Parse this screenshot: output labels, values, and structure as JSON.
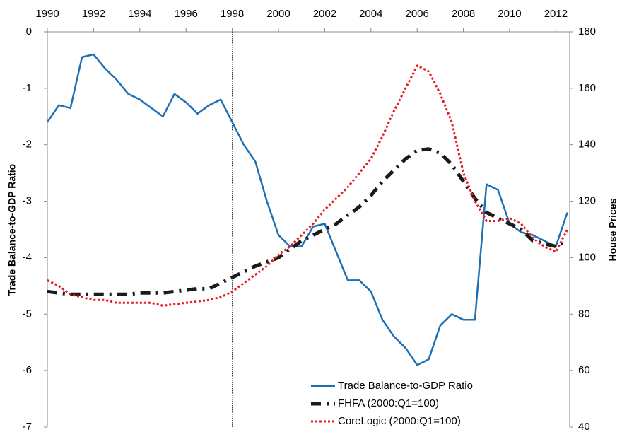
{
  "chart_data": {
    "type": "line",
    "y_label": "Trade Balance-to-GDP Ratio",
    "y2_label": "House Prices",
    "x": [
      1990,
      1990.5,
      1991,
      1991.5,
      1992,
      1992.5,
      1993,
      1993.5,
      1994,
      1994.5,
      1995,
      1995.5,
      1996,
      1996.5,
      1997,
      1997.5,
      1998,
      1998.5,
      1999,
      1999.5,
      2000,
      2000.5,
      2001,
      2001.5,
      2002,
      2002.5,
      2003,
      2003.5,
      2004,
      2004.5,
      2005,
      2005.5,
      2006,
      2006.5,
      2007,
      2007.5,
      2008,
      2008.5,
      2009,
      2009.5,
      2010,
      2010.5,
      2011,
      2011.5,
      2012,
      2012.5
    ],
    "series": [
      {
        "name": "Trade Balance-to-GDP Ratio",
        "color": "#1f6fb5",
        "style": "solid",
        "axis": "y",
        "values": [
          -1.6,
          -1.3,
          -1.35,
          -0.45,
          -0.4,
          -0.65,
          -0.85,
          -1.1,
          -1.2,
          -1.35,
          -1.5,
          -1.1,
          -1.25,
          -1.45,
          -1.3,
          -1.2,
          -1.6,
          -2.0,
          -2.3,
          -3.0,
          -3.6,
          -3.8,
          -3.8,
          -3.45,
          -3.4,
          -3.9,
          -4.4,
          -4.4,
          -4.6,
          -5.1,
          -5.4,
          -5.6,
          -5.9,
          -5.8,
          -5.2,
          -5.0,
          -5.1,
          -5.1,
          -2.7,
          -2.8,
          -3.4,
          -3.55,
          -3.6,
          -3.7,
          -3.8,
          -3.2
        ]
      },
      {
        "name": "FHFA (2000:Q1=100)",
        "color": "#1a1a1a",
        "style": "dashdot",
        "axis": "y2",
        "values": [
          88,
          87.5,
          87,
          87,
          87,
          87,
          87,
          87,
          87.5,
          87.5,
          87.5,
          88,
          88.5,
          89,
          89,
          91,
          93,
          95,
          97,
          98.5,
          100,
          103,
          106,
          108,
          110,
          112,
          115,
          118,
          122,
          127,
          131,
          135,
          138,
          138.5,
          137,
          133,
          127,
          121,
          116,
          114,
          112,
          110,
          106,
          105,
          104,
          106
        ]
      },
      {
        "name": "CoreLogic  (2000:Q1=100)",
        "color": "#e8191c",
        "style": "dotted",
        "axis": "y2",
        "values": [
          92,
          90,
          87,
          86,
          85,
          85,
          84,
          84,
          84,
          84,
          83,
          83.5,
          84,
          84.5,
          85,
          86,
          88,
          91,
          94,
          97,
          101,
          104,
          108,
          112,
          117,
          121,
          125,
          130,
          135,
          143,
          152,
          160,
          168,
          166,
          158,
          148,
          130,
          120,
          113,
          113,
          114,
          112,
          107,
          104,
          102,
          110
        ]
      }
    ],
    "xlim": [
      1990,
      2012.6
    ],
    "xticks": [
      1990,
      1992,
      1994,
      1996,
      1998,
      2000,
      2002,
      2004,
      2006,
      2008,
      2010,
      2012
    ],
    "ylim": [
      -7,
      0
    ],
    "yticks": [
      0,
      -1,
      -2,
      -3,
      -4,
      -5,
      -6,
      -7
    ],
    "y2lim": [
      40,
      180
    ],
    "y2ticks": [
      180,
      160,
      140,
      120,
      100,
      80,
      60,
      40
    ],
    "vline": 1998,
    "grid": false,
    "legend": "bottom"
  }
}
